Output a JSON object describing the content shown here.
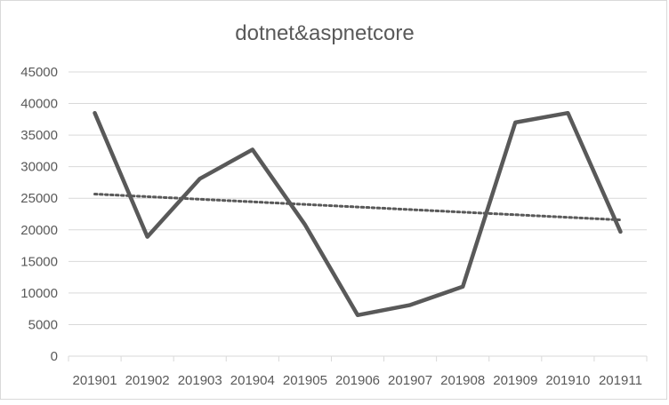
{
  "chart_data": {
    "type": "line",
    "title": "dotnet&aspnetcore",
    "xlabel": "",
    "ylabel": "",
    "categories": [
      "201901",
      "201902",
      "201903",
      "201904",
      "201905",
      "201906",
      "201907",
      "201908",
      "201909",
      "201910",
      "201911"
    ],
    "series": [
      {
        "values": [
          38500,
          18900,
          28100,
          32700,
          20800,
          6500,
          8100,
          11000,
          37000,
          38500,
          19700
        ],
        "color": "#595959"
      }
    ],
    "trendline": {
      "type": "linear",
      "style": "dotted",
      "color": "#595959"
    },
    "ylim": [
      0,
      45000
    ],
    "yticks": [
      0,
      5000,
      10000,
      15000,
      20000,
      25000,
      30000,
      35000,
      40000,
      45000
    ],
    "grid": true,
    "gridline_color": "#d9d9d9",
    "legend": "none"
  }
}
